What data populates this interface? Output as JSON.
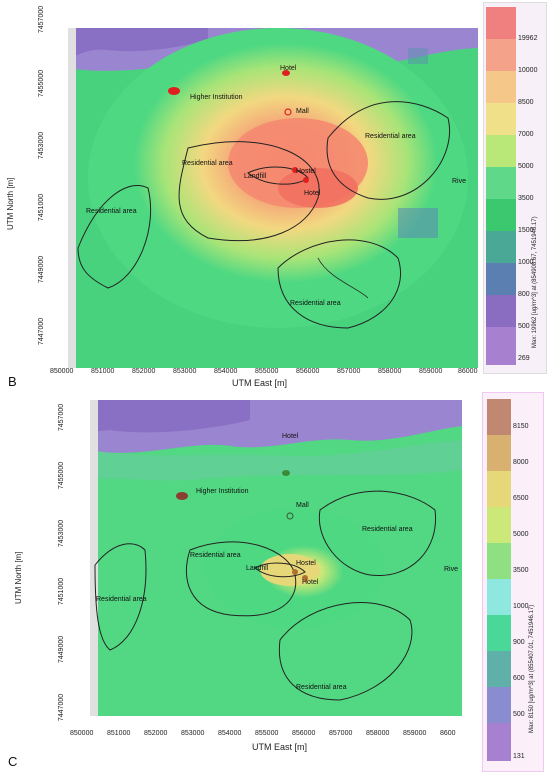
{
  "panels": [
    {
      "letter": "B",
      "xlabel": "UTM East [m]",
      "ylabel": "UTM North [m]",
      "x_ticks": [
        "850000",
        "851000",
        "852000",
        "853000",
        "854000",
        "855000",
        "856000",
        "857000",
        "858000",
        "859000",
        "86000"
      ],
      "y_ticks": [
        "7457000",
        "7455000",
        "7453000",
        "7451000",
        "7449000",
        "7447000"
      ],
      "legend_levels": [
        "19962",
        "10000",
        "8500",
        "7000",
        "5000",
        "3500",
        "1500",
        "1000",
        "800",
        "500",
        "269"
      ],
      "legend_colors": [
        "#f08080",
        "#f4a38a",
        "#f5c88a",
        "#f0e08a",
        "#b9e878",
        "#5fd88a",
        "#3cc86e",
        "#4aa896",
        "#5a7fb0",
        "#8a6cc0",
        "#a880d0"
      ],
      "legend_caption": "Max: 19962 [ug/m^3] at (854908.67, 7451946.17)",
      "map_labels": {
        "hotel_top": "Hotel",
        "higher_institution": "Higher Institution",
        "mall": "Mall",
        "residential_center": "Residential area",
        "residential_east": "Residential area",
        "residential_west": "Residential area",
        "residential_south": "Residential area",
        "hostel": "Hostel",
        "landfill": "Landfill",
        "hotel_center": "Hotel",
        "river": "Rive"
      }
    },
    {
      "letter": "C",
      "xlabel": "UTM East [m]",
      "ylabel": "UTM North [m]",
      "x_ticks": [
        "850000",
        "851000",
        "852000",
        "853000",
        "854000",
        "855000",
        "856000",
        "857000",
        "858000",
        "859000",
        "8600"
      ],
      "y_ticks": [
        "7457000",
        "7455000",
        "7453000",
        "7451000",
        "7449000",
        "7447000"
      ],
      "legend_levels": [
        "8150",
        "8000",
        "6500",
        "5000",
        "3500",
        "1000",
        "900",
        "600",
        "500",
        "131"
      ],
      "legend_colors": [
        "#c08870",
        "#d8b070",
        "#e6d878",
        "#cce878",
        "#8ee080",
        "#8ee8e0",
        "#4ad898",
        "#5fb0a8",
        "#8a8cd0",
        "#a880d0"
      ],
      "legend_caption": "Max: 8150 [ug/m^3] at (855407.01, 7451946.17)",
      "map_labels": {
        "hotel_top": "Hotel",
        "higher_institution": "Higher Institution",
        "mall": "Mall",
        "residential_center": "Residential area",
        "residential_east": "Residential area",
        "residential_west": "Residential area",
        "residential_south": "Residential area",
        "hostel": "Hostel",
        "landfill": "Landfill",
        "hotel_center": "Hotel",
        "river": "Rive"
      }
    }
  ]
}
